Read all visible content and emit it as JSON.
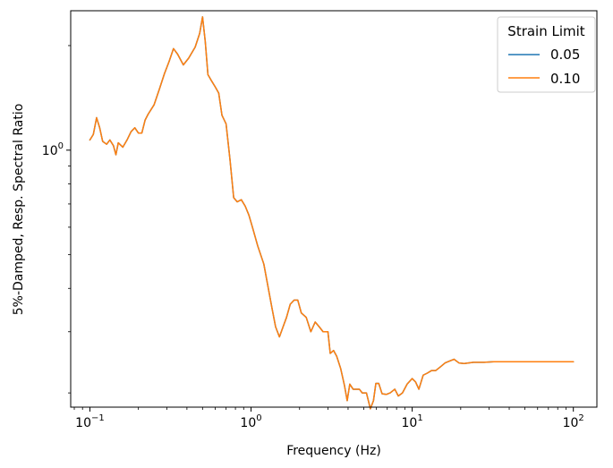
{
  "chart_data": {
    "type": "line",
    "title": "",
    "xlabel": "Frequency (Hz)",
    "ylabel": "5%-Damped, Resp. Spectral Ratio",
    "xscale": "log",
    "yscale": "log",
    "xlim": [
      0.076,
      140
    ],
    "ylim": [
      0.182,
      2.52
    ],
    "grid": false,
    "x_ticks": [
      {
        "value": 0.1,
        "base": "10",
        "exp": "−1"
      },
      {
        "value": 1,
        "base": "10",
        "exp": "0"
      },
      {
        "value": 10,
        "base": "10",
        "exp": "1"
      },
      {
        "value": 100,
        "base": "10",
        "exp": "2"
      }
    ],
    "y_ticks": [
      {
        "value": 1,
        "base": "10",
        "exp": "0"
      }
    ],
    "legend": {
      "title": "Strain Limit",
      "position": "top-right"
    },
    "series": [
      {
        "name": "0.05",
        "color": "#1f77b4",
        "x": [
          0.1,
          0.105,
          0.11,
          0.115,
          0.12,
          0.127,
          0.133,
          0.14,
          0.145,
          0.15,
          0.16,
          0.17,
          0.18,
          0.19,
          0.2,
          0.21,
          0.22,
          0.23,
          0.25,
          0.27,
          0.29,
          0.31,
          0.33,
          0.35,
          0.38,
          0.41,
          0.45,
          0.48,
          0.5,
          0.52,
          0.54,
          0.57,
          0.6,
          0.63,
          0.66,
          0.7,
          0.74,
          0.78,
          0.82,
          0.87,
          0.92,
          0.97,
          1.02,
          1.1,
          1.2,
          1.28,
          1.35,
          1.42,
          1.5,
          1.58,
          1.66,
          1.75,
          1.85,
          1.95,
          2.05,
          2.2,
          2.35,
          2.5,
          2.65,
          2.8,
          3.0,
          3.1,
          3.25,
          3.4,
          3.6,
          3.8,
          3.95,
          4.1,
          4.3,
          4.5,
          4.7,
          4.9,
          5.2,
          5.5,
          5.75,
          5.95,
          6.2,
          6.5,
          6.9,
          7.3,
          7.8,
          8.2,
          8.7,
          9.3,
          10.0,
          10.5,
          11.0,
          11.7,
          12.4,
          13.2,
          14.0,
          15.0,
          16.0,
          17.0,
          18.2,
          19.5,
          21.0,
          24.0,
          28.0,
          32.0,
          40.0,
          55.0,
          75.0,
          100.0
        ],
        "values": [
          1.07,
          1.11,
          1.24,
          1.16,
          1.06,
          1.04,
          1.07,
          1.03,
          0.97,
          1.05,
          1.02,
          1.07,
          1.13,
          1.16,
          1.12,
          1.12,
          1.22,
          1.27,
          1.35,
          1.5,
          1.66,
          1.8,
          1.96,
          1.89,
          1.76,
          1.84,
          1.98,
          2.17,
          2.42,
          2.05,
          1.65,
          1.58,
          1.52,
          1.46,
          1.26,
          1.19,
          0.94,
          0.73,
          0.71,
          0.72,
          0.69,
          0.65,
          0.6,
          0.53,
          0.47,
          0.4,
          0.35,
          0.31,
          0.29,
          0.31,
          0.33,
          0.36,
          0.37,
          0.37,
          0.34,
          0.33,
          0.3,
          0.32,
          0.31,
          0.3,
          0.3,
          0.26,
          0.265,
          0.255,
          0.235,
          0.21,
          0.19,
          0.212,
          0.205,
          0.205,
          0.205,
          0.2,
          0.2,
          0.18,
          0.19,
          0.213,
          0.213,
          0.199,
          0.198,
          0.2,
          0.205,
          0.196,
          0.2,
          0.212,
          0.22,
          0.215,
          0.205,
          0.225,
          0.228,
          0.232,
          0.232,
          0.238,
          0.244,
          0.247,
          0.25,
          0.244,
          0.243,
          0.245,
          0.245,
          0.246,
          0.246,
          0.246,
          0.246,
          0.246
        ]
      },
      {
        "name": "0.10",
        "color": "#ff7f0e",
        "x": [
          0.1,
          0.105,
          0.11,
          0.115,
          0.12,
          0.127,
          0.133,
          0.14,
          0.145,
          0.15,
          0.16,
          0.17,
          0.18,
          0.19,
          0.2,
          0.21,
          0.22,
          0.23,
          0.25,
          0.27,
          0.29,
          0.31,
          0.33,
          0.35,
          0.38,
          0.41,
          0.45,
          0.48,
          0.5,
          0.52,
          0.54,
          0.57,
          0.6,
          0.63,
          0.66,
          0.7,
          0.74,
          0.78,
          0.82,
          0.87,
          0.92,
          0.97,
          1.02,
          1.1,
          1.2,
          1.28,
          1.35,
          1.42,
          1.5,
          1.58,
          1.66,
          1.75,
          1.85,
          1.95,
          2.05,
          2.2,
          2.35,
          2.5,
          2.65,
          2.8,
          3.0,
          3.1,
          3.25,
          3.4,
          3.6,
          3.8,
          3.95,
          4.1,
          4.3,
          4.5,
          4.7,
          4.9,
          5.2,
          5.5,
          5.75,
          5.95,
          6.2,
          6.5,
          6.9,
          7.3,
          7.8,
          8.2,
          8.7,
          9.3,
          10.0,
          10.5,
          11.0,
          11.7,
          12.4,
          13.2,
          14.0,
          15.0,
          16.0,
          17.0,
          18.2,
          19.5,
          21.0,
          24.0,
          28.0,
          32.0,
          40.0,
          55.0,
          75.0,
          100.0
        ],
        "values": [
          1.07,
          1.11,
          1.24,
          1.16,
          1.06,
          1.04,
          1.07,
          1.03,
          0.97,
          1.05,
          1.02,
          1.07,
          1.13,
          1.16,
          1.12,
          1.12,
          1.22,
          1.27,
          1.35,
          1.5,
          1.66,
          1.8,
          1.96,
          1.89,
          1.76,
          1.84,
          1.98,
          2.17,
          2.42,
          2.05,
          1.65,
          1.58,
          1.52,
          1.46,
          1.26,
          1.19,
          0.94,
          0.73,
          0.71,
          0.72,
          0.69,
          0.65,
          0.6,
          0.53,
          0.47,
          0.4,
          0.35,
          0.31,
          0.29,
          0.31,
          0.33,
          0.36,
          0.37,
          0.37,
          0.34,
          0.33,
          0.3,
          0.32,
          0.31,
          0.3,
          0.3,
          0.26,
          0.265,
          0.255,
          0.235,
          0.21,
          0.19,
          0.212,
          0.205,
          0.205,
          0.205,
          0.2,
          0.2,
          0.18,
          0.19,
          0.213,
          0.213,
          0.199,
          0.198,
          0.2,
          0.205,
          0.196,
          0.2,
          0.212,
          0.22,
          0.215,
          0.205,
          0.225,
          0.228,
          0.232,
          0.232,
          0.238,
          0.244,
          0.247,
          0.25,
          0.244,
          0.243,
          0.245,
          0.245,
          0.246,
          0.246,
          0.246,
          0.246,
          0.246
        ]
      }
    ]
  }
}
